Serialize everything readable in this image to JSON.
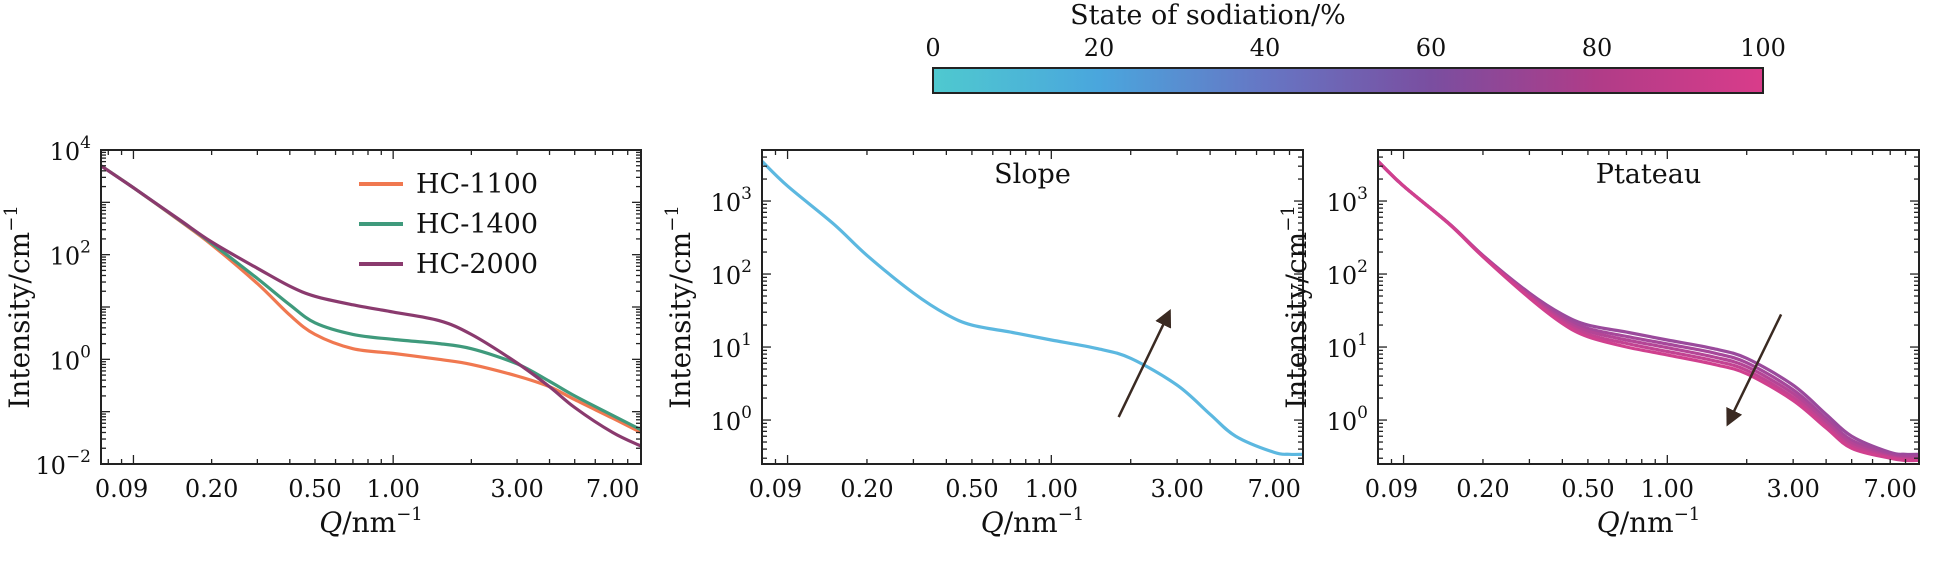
{
  "colorbar": {
    "title": "State of sodiation/%",
    "ticks": [
      "0",
      "20",
      "40",
      "60",
      "80",
      "100"
    ],
    "colors": [
      "#4fc9cf",
      "#4aa6dd",
      "#6676c4",
      "#7a4ea0",
      "#b03c88",
      "#d93c8a"
    ]
  },
  "chart_data": [
    {
      "type": "line",
      "title": "",
      "xlabel_main": "Q",
      "xlabel_unit": "/nm",
      "xlabel_sup": "−1",
      "ylabel": "Intensity/cm",
      "ylabel_sup": "−1",
      "xscale": "log",
      "yscale": "log",
      "xlim": [
        0.075,
        9.0
      ],
      "ylim": [
        0.01,
        10000
      ],
      "xticks": [
        0.09,
        0.2,
        0.5,
        1.0,
        3.0,
        7.0
      ],
      "xtick_labels": [
        "0.09",
        "0.20",
        "0.50",
        "1.00",
        "3.00",
        "7.00"
      ],
      "yticks": [
        {
          "value": 0.01,
          "base": "10",
          "exp": "−2"
        },
        {
          "value": 1,
          "base": "10",
          "exp": "0"
        },
        {
          "value": 100,
          "base": "10",
          "exp": "2"
        },
        {
          "value": 10000,
          "base": "10",
          "exp": "4"
        }
      ],
      "legend_position": "top-right",
      "series": [
        {
          "name": "HC-1100",
          "color": "#f07850",
          "x": [
            0.075,
            0.1,
            0.15,
            0.2,
            0.3,
            0.4,
            0.5,
            0.7,
            1.0,
            1.5,
            2.0,
            3.0,
            4.0,
            5.0,
            7.0,
            9.0
          ],
          "y": [
            5000,
            1900,
            450,
            155,
            28,
            7.0,
            3.0,
            1.6,
            1.3,
            1.0,
            0.8,
            0.48,
            0.3,
            0.17,
            0.075,
            0.04
          ]
        },
        {
          "name": "HC-1400",
          "color": "#3f9a7c",
          "x": [
            0.075,
            0.1,
            0.15,
            0.2,
            0.3,
            0.4,
            0.5,
            0.7,
            1.0,
            1.5,
            2.0,
            3.0,
            4.0,
            5.0,
            7.0,
            9.0
          ],
          "y": [
            5000,
            1900,
            460,
            165,
            35,
            11,
            5.0,
            3.0,
            2.4,
            2.0,
            1.6,
            0.82,
            0.38,
            0.2,
            0.085,
            0.045
          ]
        },
        {
          "name": "HC-2000",
          "color": "#8a3a6e",
          "x": [
            0.075,
            0.1,
            0.15,
            0.2,
            0.3,
            0.4,
            0.5,
            0.7,
            1.0,
            1.5,
            2.0,
            3.0,
            4.0,
            5.0,
            7.0,
            9.0
          ],
          "y": [
            5000,
            1900,
            470,
            175,
            55,
            25,
            16,
            11,
            8.0,
            5.5,
            3.0,
            0.85,
            0.3,
            0.12,
            0.04,
            0.022
          ]
        }
      ]
    },
    {
      "type": "line",
      "title": "Slope",
      "xlabel_main": "Q",
      "xlabel_unit": "/nm",
      "xlabel_sup": "−1",
      "ylabel": "Intensity/cm",
      "ylabel_sup": "−1",
      "xscale": "log",
      "yscale": "log",
      "xlim": [
        0.08,
        9.0
      ],
      "ylim": [
        0.25,
        5000
      ],
      "xticks": [
        0.09,
        0.2,
        0.5,
        1.0,
        3.0,
        7.0
      ],
      "xtick_labels": [
        "0.09",
        "0.20",
        "0.50",
        "1.00",
        "3.00",
        "7.00"
      ],
      "yticks": [
        {
          "value": 1,
          "base": "10",
          "exp": "0"
        },
        {
          "value": 10,
          "base": "10",
          "exp": "1"
        },
        {
          "value": 100,
          "base": "10",
          "exp": "2"
        },
        {
          "value": 1000,
          "base": "10",
          "exp": "3"
        }
      ],
      "arrow": {
        "from": [
          1.8,
          1.1
        ],
        "to": [
          2.8,
          30
        ],
        "direction": "up"
      },
      "series": [
        {
          "color": "#5cb8e0",
          "x": [
            0.08,
            0.1,
            0.15,
            0.2,
            0.3,
            0.4,
            0.5,
            0.7,
            1.0,
            1.5,
            2.0,
            3.0,
            4.0,
            5.0,
            7.0,
            8.0,
            9.0
          ],
          "y": [
            3500,
            1600,
            480,
            180,
            55,
            28,
            20,
            16,
            12.5,
            9.5,
            7.0,
            3.0,
            1.2,
            0.6,
            0.36,
            0.34,
            0.34
          ]
        }
      ]
    },
    {
      "type": "line",
      "title": "Ptateau",
      "xlabel_main": "Q",
      "xlabel_unit": "/nm",
      "xlabel_sup": "−1",
      "ylabel": "Intensity/cm",
      "ylabel_sup": "−1",
      "xscale": "log",
      "yscale": "log",
      "xlim": [
        0.08,
        9.0
      ],
      "ylim": [
        0.25,
        5000
      ],
      "xticks": [
        0.09,
        0.2,
        0.5,
        1.0,
        3.0,
        7.0
      ],
      "xtick_labels": [
        "0.09",
        "0.20",
        "0.50",
        "1.00",
        "3.00",
        "7.00"
      ],
      "yticks": [
        {
          "value": 1,
          "base": "10",
          "exp": "0"
        },
        {
          "value": 10,
          "base": "10",
          "exp": "1"
        },
        {
          "value": 100,
          "base": "10",
          "exp": "2"
        },
        {
          "value": 1000,
          "base": "10",
          "exp": "3"
        }
      ],
      "arrow": {
        "from": [
          2.7,
          28
        ],
        "to": [
          1.7,
          0.9
        ],
        "direction": "down"
      },
      "series": [
        {
          "color": "#9a4a9c",
          "x": [
            0.08,
            0.1,
            0.15,
            0.2,
            0.3,
            0.4,
            0.5,
            0.7,
            1.0,
            1.5,
            2.0,
            3.0,
            4.0,
            5.0,
            7.0,
            8.0,
            9.0
          ],
          "y": [
            3500,
            1600,
            480,
            180,
            55,
            28,
            20,
            16,
            12.5,
            9.5,
            7.0,
            3.0,
            1.2,
            0.6,
            0.36,
            0.34,
            0.34
          ]
        },
        {
          "color": "#a6479a",
          "x": [
            0.08,
            0.1,
            0.15,
            0.2,
            0.3,
            0.4,
            0.5,
            0.7,
            1.0,
            1.5,
            2.0,
            3.0,
            4.0,
            5.0,
            7.0,
            8.0,
            9.0
          ],
          "y": [
            3500,
            1600,
            478,
            178,
            53,
            26,
            18,
            14,
            11,
            8.3,
            6.1,
            2.6,
            1.05,
            0.53,
            0.34,
            0.32,
            0.32
          ]
        },
        {
          "color": "#b44596",
          "x": [
            0.08,
            0.1,
            0.15,
            0.2,
            0.3,
            0.4,
            0.5,
            0.7,
            1.0,
            1.5,
            2.0,
            3.0,
            4.0,
            5.0,
            7.0,
            8.0,
            9.0
          ],
          "y": [
            3500,
            1600,
            476,
            176,
            51,
            24,
            16.5,
            12.5,
            9.8,
            7.3,
            5.4,
            2.3,
            0.95,
            0.48,
            0.32,
            0.3,
            0.3
          ]
        },
        {
          "color": "#c24392",
          "x": [
            0.08,
            0.1,
            0.15,
            0.2,
            0.3,
            0.4,
            0.5,
            0.7,
            1.0,
            1.5,
            2.0,
            3.0,
            4.0,
            5.0,
            7.0,
            8.0,
            9.0
          ],
          "y": [
            3500,
            1600,
            474,
            174,
            49,
            22.5,
            15,
            11.2,
            8.7,
            6.5,
            4.8,
            2.05,
            0.85,
            0.44,
            0.31,
            0.29,
            0.29
          ]
        },
        {
          "color": "#d0408e",
          "x": [
            0.08,
            0.1,
            0.15,
            0.2,
            0.3,
            0.4,
            0.5,
            0.7,
            1.0,
            1.5,
            2.0,
            3.0,
            4.0,
            5.0,
            7.0,
            8.0,
            9.0
          ],
          "y": [
            3500,
            1600,
            472,
            172,
            47,
            21,
            13.8,
            10,
            7.8,
            5.8,
            4.3,
            1.85,
            0.78,
            0.41,
            0.3,
            0.28,
            0.28
          ]
        }
      ]
    }
  ]
}
